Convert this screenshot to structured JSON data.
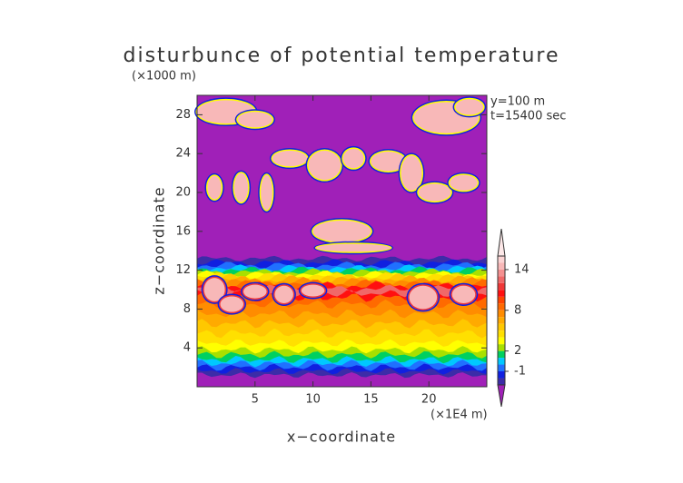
{
  "chart_data": {
    "type": "contour",
    "title": "disturbunce of potential temperature",
    "y_unit_label": "(×1000 m)",
    "x_unit_label": "(×1E4 m)",
    "annotations": [
      "y=100 m",
      "t=15400 sec"
    ],
    "xlabel": "x−coordinate",
    "ylabel": "z−coordinate",
    "xlim": [
      0,
      25
    ],
    "xticks": [
      5,
      10,
      15,
      20
    ],
    "ylim": [
      0,
      30
    ],
    "yticks": [
      4,
      8,
      12,
      16,
      20,
      24,
      28
    ],
    "colorbar": {
      "levels": [
        -3,
        -2,
        -1,
        0,
        1,
        2,
        3,
        4,
        5,
        6,
        7,
        8,
        9,
        10,
        11,
        12,
        13,
        14,
        15,
        16
      ],
      "colors": [
        "#3c2ca8",
        "#1020e0",
        "#2070ff",
        "#00c8ff",
        "#00d060",
        "#a8e000",
        "#ffff00",
        "#ffe000",
        "#ffc800",
        "#ffaa00",
        "#ff8c00",
        "#ff6a00",
        "#ff4400",
        "#ff1010",
        "#f03838",
        "#f06868",
        "#f49090",
        "#f8b8b8",
        "#fcd4d4"
      ],
      "under_color": "#a020b8",
      "over_color": "#fde8e8",
      "ticks": [
        -1,
        2,
        8,
        14
      ]
    }
  }
}
